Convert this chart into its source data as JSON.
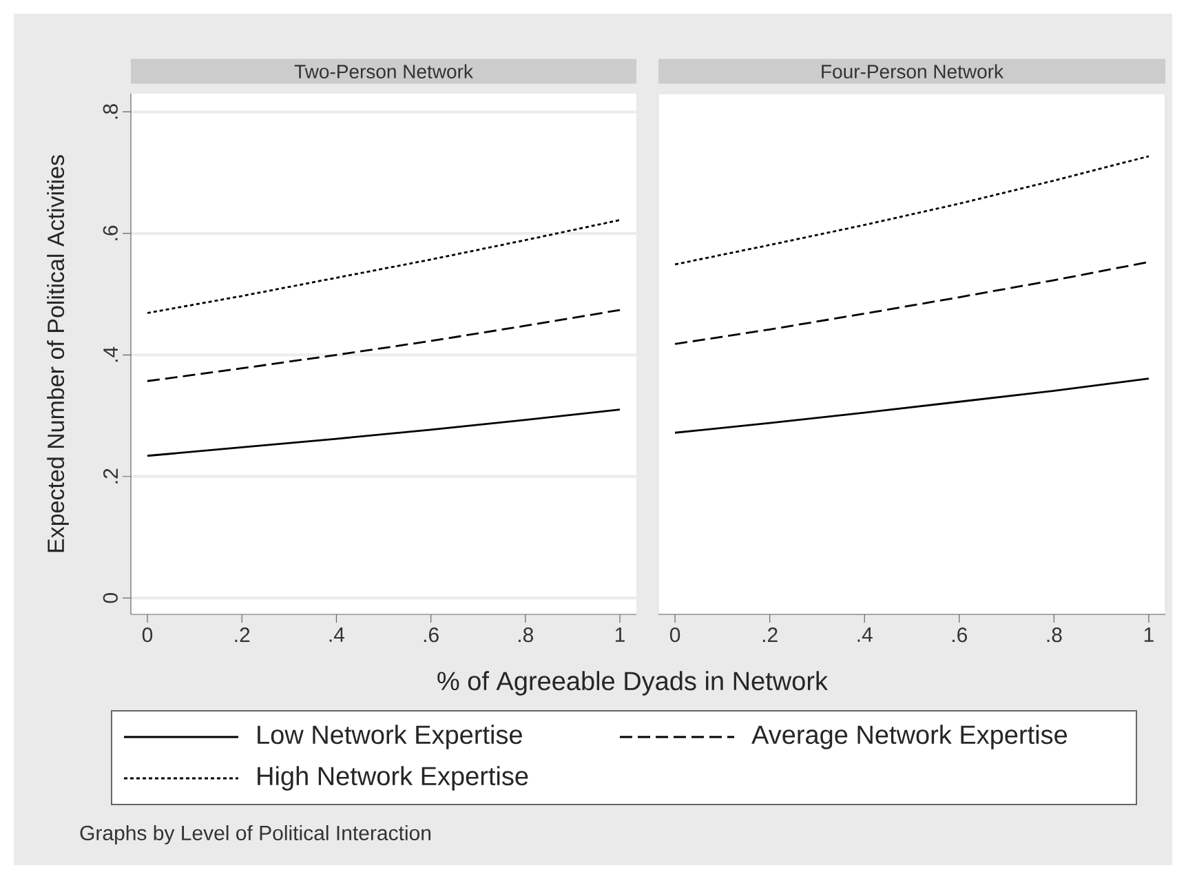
{
  "chart_data": [
    {
      "type": "line",
      "title": "Two-Person Network",
      "xlabel": "% of Agreeable Dyads in Network",
      "ylabel": "Expected Number of Political Activities",
      "x": [
        0,
        0.2,
        0.4,
        0.6,
        0.8,
        1
      ],
      "series": [
        {
          "name": "Low Network Expertise",
          "color": "#000000",
          "line_style": "solid",
          "values": [
            0.234,
            0.248,
            0.262,
            0.277,
            0.293,
            0.31
          ]
        },
        {
          "name": "Average Network Expertise",
          "color": "#000000",
          "line_style": "dashed",
          "values": [
            0.357,
            0.378,
            0.4,
            0.423,
            0.448,
            0.474
          ]
        },
        {
          "name": "High Network Expertise",
          "color": "#000000",
          "line_style": "dotted",
          "values": [
            0.469,
            0.497,
            0.527,
            0.557,
            0.589,
            0.622
          ]
        }
      ],
      "xlim": [
        -0.035,
        1.035
      ],
      "ylim": [
        -0.027,
        0.83
      ],
      "xticks": [
        0,
        {
          "value": 0.2,
          "label": ".2"
        },
        {
          "value": 0.4,
          "label": ".4"
        },
        {
          "value": 0.6,
          "label": ".6"
        },
        {
          "value": 0.8,
          "label": ".8"
        },
        1
      ],
      "yticks": [
        0,
        {
          "value": 0.2,
          "label": ".2"
        },
        {
          "value": 0.4,
          "label": ".4"
        },
        {
          "value": 0.6,
          "label": ".6"
        },
        {
          "value": 0.8,
          "label": ".8"
        }
      ],
      "grid": "y",
      "legend": "bottom",
      "annotations": [
        "Graphs by Level of Political Interaction"
      ]
    },
    {
      "type": "line",
      "title": "Four-Person Network",
      "x": [
        0,
        0.2,
        0.4,
        0.6,
        0.8,
        1
      ],
      "series": [
        {
          "color": "#000000",
          "line_style": "solid",
          "values": [
            0.272,
            0.288,
            0.305,
            0.323,
            0.341,
            0.361
          ]
        },
        {
          "color": "#000000",
          "line_style": "dashed",
          "values": [
            0.418,
            0.442,
            0.468,
            0.495,
            0.523,
            0.553
          ]
        },
        {
          "color": "#000000",
          "line_style": "dotted",
          "values": [
            0.549,
            0.581,
            0.614,
            0.649,
            0.687,
            0.727
          ]
        }
      ],
      "xlim": [
        -0.035,
        1.035
      ],
      "ylim": [
        -0.027,
        0.83
      ],
      "xticks": [
        0,
        {
          "value": 0.2,
          "label": ".2"
        },
        {
          "value": 0.4,
          "label": ".4"
        },
        {
          "value": 0.6,
          "label": ".6"
        },
        {
          "value": 0.8,
          "label": ".8"
        },
        1
      ],
      "yticks": [
        {
          "value": 0.2,
          "label": null
        },
        {
          "value": 0.4,
          "label": null
        },
        {
          "value": 0.6,
          "label": null
        },
        {
          "value": 0.8,
          "label": null
        }
      ],
      "grid": "y",
      "tick_labels": "x"
    }
  ]
}
